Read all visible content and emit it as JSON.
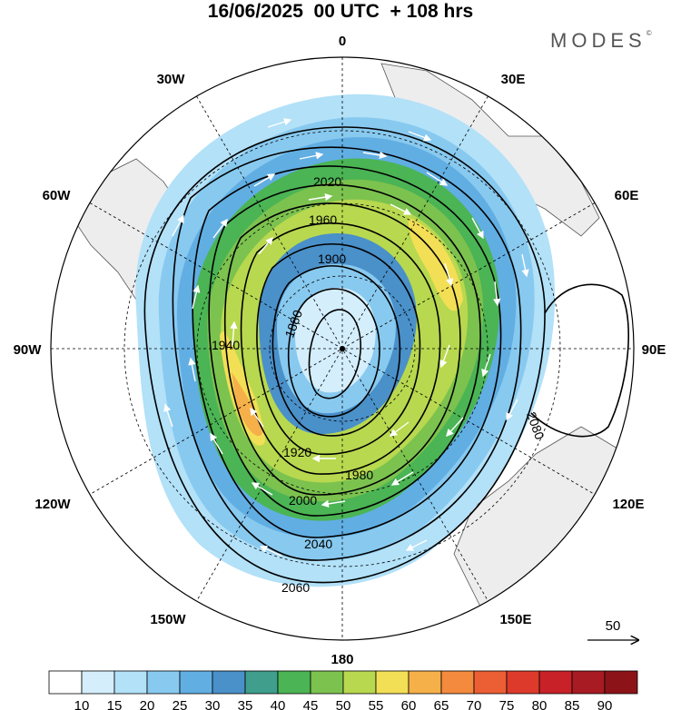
{
  "title": "16/06/2025  00 UTC  + 108 hrs",
  "brand": "MODES",
  "brand_mark": "©",
  "longitude_labels": [
    "0",
    "30E",
    "60E",
    "90E",
    "120E",
    "150E",
    "180",
    "150W",
    "120W",
    "90W",
    "60W",
    "30W"
  ],
  "contour_labels": [
    "1880",
    "1900",
    "1920",
    "1940",
    "1960",
    "1980",
    "2000",
    "2020",
    "2040",
    "2060",
    "2080"
  ],
  "reference_vector": {
    "label": "50"
  },
  "colorbar": {
    "ticks": [
      "10",
      "15",
      "20",
      "25",
      "30",
      "35",
      "40",
      "45",
      "50",
      "55",
      "60",
      "65",
      "70",
      "75",
      "80",
      "85",
      "90"
    ],
    "colors": [
      "#ffffff",
      "#d4eefc",
      "#b2e1f8",
      "#88c9ef",
      "#61aee3",
      "#4a90c9",
      "#3f9e8c",
      "#4bb454",
      "#7cc24f",
      "#b8d84f",
      "#f3df55",
      "#f6b04a",
      "#f38a3e",
      "#ec5e34",
      "#dd3a2c",
      "#c82228",
      "#a81b23",
      "#8c1418"
    ]
  }
}
